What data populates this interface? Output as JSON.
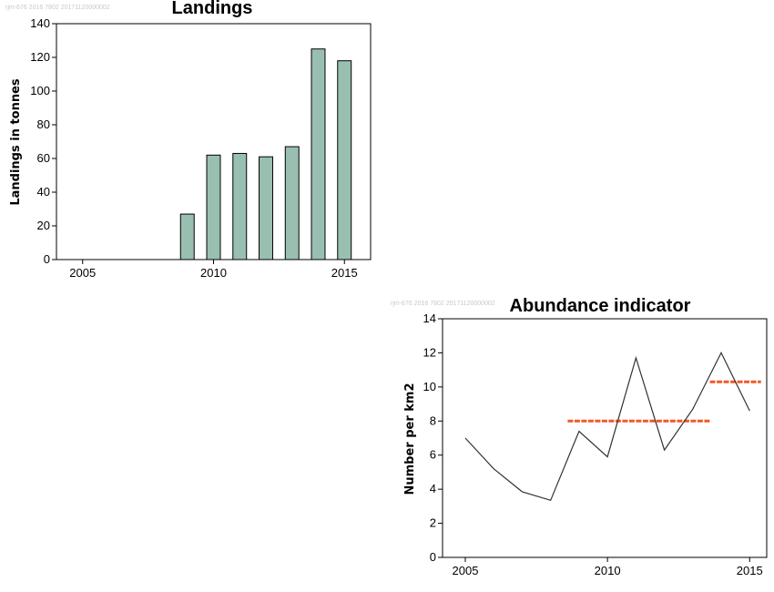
{
  "chart_data": [
    {
      "type": "bar",
      "title": "Landings",
      "watermark": "rjm-676 2016 7802 20171120000002",
      "xlabel": "",
      "ylabel": "Landings in tonnes",
      "x": [
        2009,
        2010,
        2011,
        2012,
        2013,
        2014,
        2015
      ],
      "values": [
        27,
        62,
        63,
        61,
        67,
        125,
        118
      ],
      "xlim": [
        2004,
        2016
      ],
      "ylim": [
        0,
        140
      ],
      "xticks": [
        2005,
        2010,
        2015
      ],
      "yticks": [
        0,
        20,
        40,
        60,
        80,
        100,
        120,
        140
      ],
      "colors": {
        "bar_fill": "#99bfb0",
        "bar_stroke": "#000000"
      },
      "grid": false
    },
    {
      "type": "line",
      "title": "Abundance indicator",
      "watermark": "rjm-676 2016 7802 20171120000002",
      "xlabel": "",
      "ylabel": "Number per km2",
      "x": [
        2005,
        2006,
        2007,
        2008,
        2009,
        2010,
        2011,
        2012,
        2013,
        2014,
        2015
      ],
      "values": [
        7.0,
        5.2,
        3.85,
        3.35,
        7.4,
        5.9,
        11.7,
        6.3,
        8.7,
        12.0,
        8.6
      ],
      "reference_lines": [
        {
          "x_start": 2008.6,
          "x_end": 2013.6,
          "y": 8.0
        },
        {
          "x_start": 2013.6,
          "x_end": 2015.4,
          "y": 10.3
        }
      ],
      "xlim": [
        2004.2,
        2015.6
      ],
      "ylim": [
        0,
        14
      ],
      "xticks": [
        2005,
        2010,
        2015
      ],
      "yticks": [
        0,
        2,
        4,
        6,
        8,
        10,
        12,
        14
      ],
      "colors": {
        "line": "#333333",
        "reference": "#f05a28"
      },
      "grid": false
    }
  ]
}
